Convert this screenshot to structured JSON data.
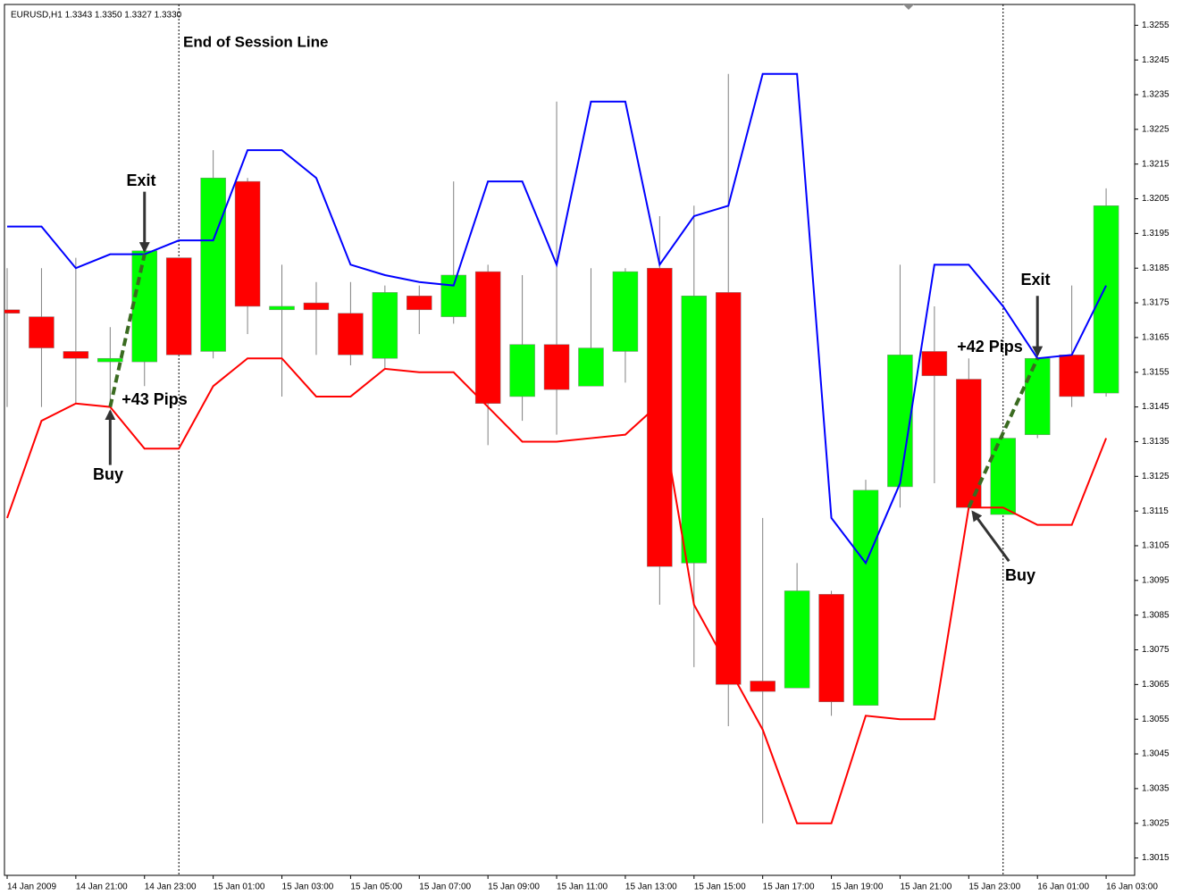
{
  "chart_data": {
    "type": "candlestick",
    "title": "EURUSD,H1  1.3343 1.3350 1.3327 1.3330",
    "categories": [
      "14 Jan 2009",
      null,
      "14 Jan 21:00",
      null,
      "14 Jan 23:00",
      null,
      "15 Jan 01:00",
      null,
      "15 Jan 03:00",
      null,
      "15 Jan 05:00",
      null,
      "15 Jan 07:00",
      null,
      "15 Jan 09:00",
      null,
      "15 Jan 11:00",
      null,
      "15 Jan 13:00",
      null,
      "15 Jan 15:00",
      null,
      "15 Jan 17:00",
      null,
      "15 Jan 19:00",
      null,
      "15 Jan 21:00",
      null,
      "15 Jan 23:00",
      null,
      "16 Jan 01:00",
      null,
      "16 Jan 03:00"
    ],
    "open": [
      1.3173,
      1.3171,
      1.3161,
      1.3158,
      1.3158,
      1.3188,
      1.3161,
      1.321,
      1.3173,
      1.3175,
      1.3172,
      1.3159,
      1.3177,
      1.3171,
      1.3184,
      1.3148,
      1.3163,
      1.3151,
      1.3161,
      1.3185,
      1.31,
      1.3178,
      1.3066,
      1.3064,
      1.3091,
      1.3059,
      1.3122,
      1.3161,
      1.3153,
      1.3114,
      1.3137,
      1.316,
      1.3149
    ],
    "high": [
      1.3185,
      1.3185,
      1.3188,
      1.3168,
      1.319,
      1.3188,
      1.3219,
      1.3211,
      1.3186,
      1.3181,
      1.3181,
      1.318,
      1.318,
      1.321,
      1.3186,
      1.3183,
      1.3233,
      1.3185,
      1.3185,
      1.32,
      1.3203,
      1.3241,
      1.3113,
      1.31,
      1.3092,
      1.3124,
      1.3186,
      1.3174,
      1.3159,
      1.3136,
      1.3165,
      1.318,
      1.3208
    ],
    "low": [
      1.3145,
      1.3145,
      1.3146,
      1.3145,
      1.3151,
      1.316,
      1.3159,
      1.3166,
      1.3148,
      1.316,
      1.3157,
      1.3156,
      1.3166,
      1.3169,
      1.3134,
      1.3141,
      1.3137,
      1.3151,
      1.3152,
      1.3088,
      1.307,
      1.3053,
      1.3025,
      1.3064,
      1.3056,
      1.3059,
      1.3116,
      1.3123,
      1.3116,
      1.3114,
      1.3136,
      1.3145,
      1.3148
    ],
    "close": [
      1.3172,
      1.3162,
      1.3159,
      1.3159,
      1.319,
      1.316,
      1.3211,
      1.3174,
      1.3174,
      1.3173,
      1.316,
      1.3178,
      1.3173,
      1.3183,
      1.3146,
      1.3163,
      1.315,
      1.3162,
      1.3184,
      1.3099,
      1.3177,
      1.3065,
      1.3063,
      1.3092,
      1.306,
      1.3121,
      1.316,
      1.3154,
      1.3116,
      1.3136,
      1.3159,
      1.3148,
      1.3203
    ],
    "up_color": "#00ff00",
    "down_color": "#ff0000",
    "bands": [
      {
        "color": "#0000ff",
        "values": [
          1.3197,
          1.3197,
          1.3185,
          1.3189,
          1.3189,
          1.3193,
          1.3193,
          1.3219,
          1.3219,
          1.3211,
          1.3186,
          1.3183,
          1.3181,
          1.318,
          1.321,
          1.321,
          1.3186,
          1.3233,
          1.3233,
          1.3186,
          1.32,
          1.3203,
          1.3241,
          1.3241,
          1.3113,
          1.31,
          1.3123,
          1.3186,
          1.3186,
          1.3174,
          1.3159,
          1.316,
          1.318
        ]
      },
      {
        "color": "#ff0000",
        "values": [
          1.3113,
          1.3141,
          1.3146,
          1.3145,
          1.3133,
          1.3133,
          1.3151,
          1.3159,
          1.3159,
          1.3148,
          1.3148,
          1.3156,
          1.3155,
          1.3155,
          1.3145,
          1.3135,
          1.3135,
          1.3136,
          1.3137,
          1.3146,
          1.3088,
          1.307,
          1.3052,
          1.3025,
          1.3025,
          1.3056,
          1.3055,
          1.3055,
          1.3116,
          1.3116,
          1.3111,
          1.3111,
          1.3136
        ]
      }
    ],
    "ylim": [
      1.301,
      1.3261
    ],
    "yticks": [
      1.3255,
      1.3245,
      1.3235,
      1.3225,
      1.3215,
      1.3205,
      1.3195,
      1.3185,
      1.3175,
      1.3165,
      1.3155,
      1.3145,
      1.3135,
      1.3125,
      1.3115,
      1.3105,
      1.3095,
      1.3085,
      1.3075,
      1.3065,
      1.3055,
      1.3045,
      1.3035,
      1.3025,
      1.3015
    ],
    "session_label": "End of Session Line",
    "trades": [
      {
        "entry": "Buy",
        "exit": "Exit",
        "result": "+43 Pips"
      },
      {
        "entry": "Buy",
        "exit": "Exit",
        "result": "+42 Pips"
      }
    ]
  }
}
